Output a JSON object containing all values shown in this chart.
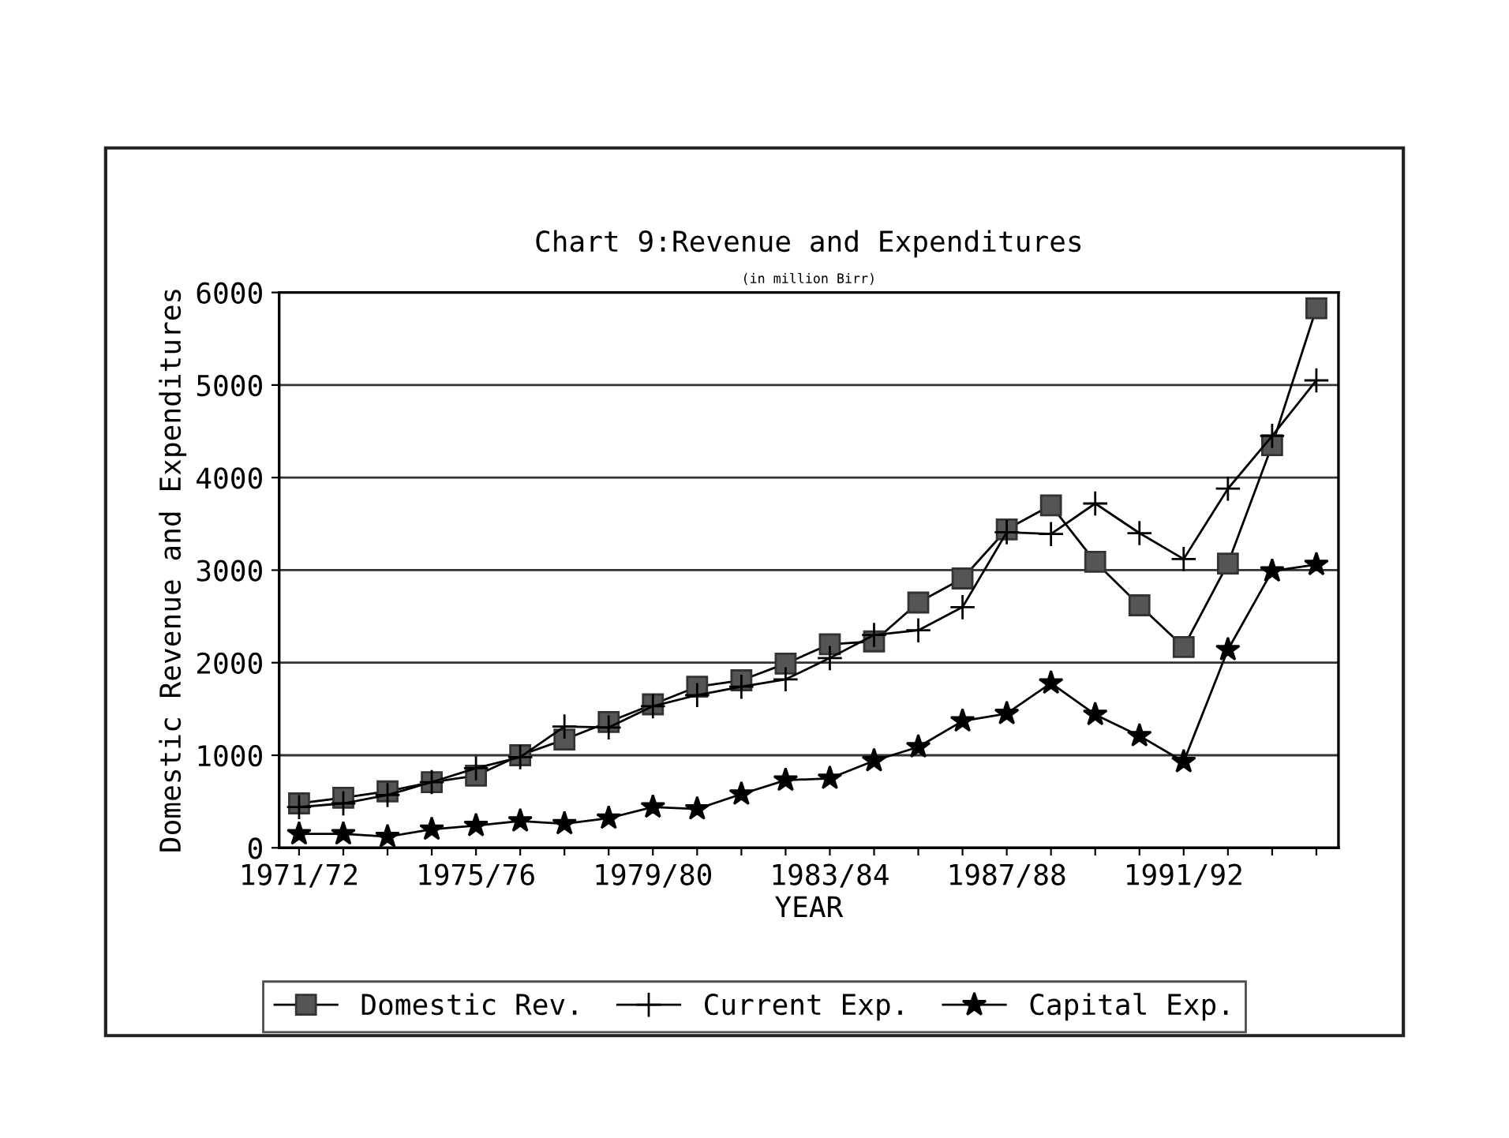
{
  "chart_data": {
    "type": "line",
    "title": "Chart 9:Revenue and Expenditures",
    "subtitle": "(in million Birr)",
    "xlabel": "YEAR",
    "ylabel": "Domestic Revenue and Expenditures",
    "categories": [
      "1971/72",
      null,
      null,
      null,
      "1975/76",
      null,
      null,
      null,
      "1979/80",
      null,
      null,
      null,
      "1983/84",
      null,
      null,
      null,
      "1987/88",
      null,
      null,
      null,
      "1991/92",
      null,
      null,
      null
    ],
    "ylim": [
      0,
      6000
    ],
    "yticks": [
      0,
      1000,
      2000,
      3000,
      4000,
      5000,
      6000
    ],
    "grid": "y",
    "legend": "bottom",
    "series": [
      {
        "name": "Domestic Rev.",
        "color": "#000000",
        "marker": "square",
        "values": [
          480,
          540,
          610,
          710,
          780,
          1000,
          1170,
          1360,
          1550,
          1740,
          1810,
          1990,
          2200,
          2230,
          2650,
          2910,
          3440,
          3700,
          3090,
          2620,
          2170,
          3070,
          4350,
          5830
        ]
      },
      {
        "name": "Current Exp.",
        "color": "#000000",
        "marker": "cross",
        "values": [
          440,
          480,
          570,
          710,
          860,
          980,
          1310,
          1300,
          1530,
          1650,
          1740,
          1820,
          2050,
          2300,
          2350,
          2600,
          3410,
          3390,
          3720,
          3400,
          3120,
          3880,
          4450,
          5050
        ]
      },
      {
        "name": "Capital Exp.",
        "color": "#000000",
        "marker": "star",
        "values": [
          150,
          150,
          120,
          200,
          240,
          290,
          260,
          320,
          440,
          420,
          580,
          730,
          750,
          940,
          1090,
          1370,
          1450,
          1780,
          1440,
          1210,
          930,
          2140,
          2990,
          3060
        ]
      }
    ]
  }
}
